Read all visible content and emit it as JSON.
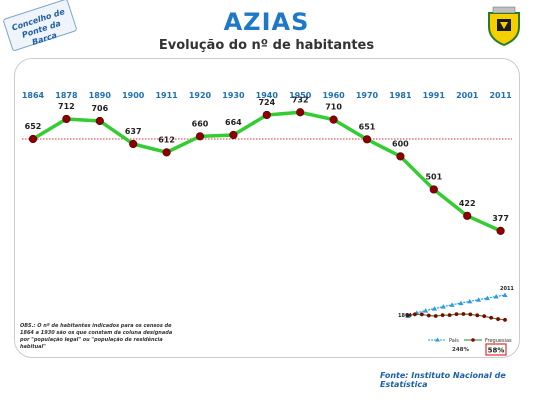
{
  "stamp": {
    "line1": "Concelho de",
    "line2": "Ponte da Barca"
  },
  "header": {
    "title": "AZIAS",
    "subtitle": "Evolução do nº de habitantes"
  },
  "colors": {
    "title": "#1e78c8",
    "line": "#33cc33",
    "marker": "#8b0000",
    "reference": "#e03030",
    "country": "#2a9de0"
  },
  "chart_data": {
    "type": "line",
    "categories": [
      "1864",
      "1878",
      "1890",
      "1900",
      "1911",
      "1920",
      "1930",
      "1940",
      "1950",
      "1960",
      "1970",
      "1981",
      "1991",
      "2001",
      "2011"
    ],
    "series": [
      {
        "values": [
          652,
          712,
          706,
          637,
          612,
          660,
          664,
          724,
          732,
          710,
          651,
          600,
          501,
          422,
          377
        ]
      }
    ],
    "reference_line": "dotted red horizontal at the 1864 value",
    "ylim": [
      300,
      800
    ],
    "grid": false
  },
  "inset": {
    "start_label": "1864",
    "end_label": "2011",
    "legend": {
      "country": "País",
      "parish": "Freguesias"
    },
    "country_change": "248%",
    "parish_change": "58%"
  },
  "obs": "OBS.: O nº de habitantes indicados para os censos de 1864 a 1930 são os que constam da coluna designada por \"população legal\" ou \"população de residência habitual\"",
  "source": "Fonte: Instituto Nacional de Estatística"
}
